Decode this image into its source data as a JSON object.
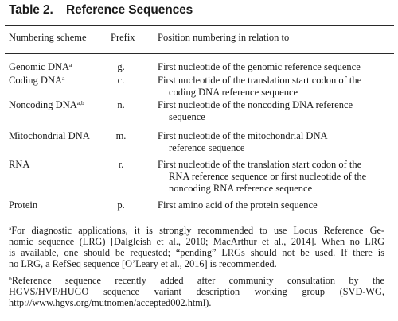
{
  "table": {
    "label": "Table 2.",
    "title": "Reference Sequences"
  },
  "columns": [
    "Numbering scheme",
    "Prefix",
    "Position numbering in relation to"
  ],
  "rows": [
    {
      "scheme": "Genomic DNA",
      "sup": "a",
      "prefix": "g.",
      "lines": [
        "First nucleotide of the genomic reference sequence"
      ]
    },
    {
      "scheme": "Coding DNA",
      "sup": "a",
      "prefix": "c.",
      "lines": [
        "First nucleotide of the translation start codon of the",
        "coding DNA reference sequence"
      ]
    },
    {
      "scheme": "Noncoding DNA",
      "sup": "a,b",
      "prefix": "n.",
      "lines": [
        "First nucleotide of the noncoding DNA reference",
        "sequence"
      ]
    },
    {
      "scheme": "Mitochondrial DNA",
      "sup": "",
      "prefix": "m.",
      "lines": [
        "First nucleotide of the mitochondrial DNA",
        "reference sequence"
      ]
    },
    {
      "scheme": "RNA",
      "sup": "",
      "prefix": "r.",
      "lines": [
        "First nucleotide of the translation start codon of the",
        "RNA reference sequence or first nucleotide of the",
        "noncoding RNA reference sequence"
      ]
    },
    {
      "scheme": "Protein",
      "sup": "",
      "prefix": "p.",
      "lines": [
        "First amino acid of the protein sequence"
      ]
    }
  ],
  "footnotes": [
    {
      "mark": "a",
      "lines": [
        "For diagnostic applications, it is strongly recommended to use Locus Reference Ge-",
        "nomic sequence (LRG) [Dalgleish et al., 2010; MacArthur et al., 2014]. When no LRG",
        "is available, one should be requested; “pending” LRGs should not be used. If there is",
        "no LRG, a RefSeq sequence [O’Leary et al., 2016] is recommended."
      ]
    },
    {
      "mark": "b",
      "lines": [
        "Reference sequence recently added after community consultation by the",
        "HGVS/HVP/HUGO sequence variant description working group (SVD-WG,",
        "http://www.hgvs.org/mutnomen/accepted002.html)."
      ]
    }
  ]
}
